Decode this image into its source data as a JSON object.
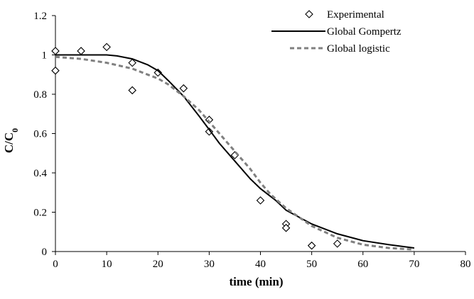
{
  "chart_data": {
    "type": "line",
    "xlabel": "time (min)",
    "ylabel_main": "C/C",
    "ylabel_sub": "0",
    "xlim": [
      0,
      80
    ],
    "ylim": [
      0,
      1.2
    ],
    "x_ticks": [
      0,
      10,
      20,
      30,
      40,
      50,
      60,
      70,
      80
    ],
    "y_ticks": [
      0,
      0.2,
      0.4,
      0.6,
      0.8,
      1,
      1.2
    ],
    "y_tick_labels": [
      "0",
      "0.2",
      "0.4",
      "0.6",
      "0.8",
      "1",
      "1.2"
    ],
    "grid": false,
    "legend_position": "top-right",
    "series": [
      {
        "name": "Experimental",
        "style": "markers",
        "marker": "diamond-open",
        "color": "#000000",
        "points": [
          [
            0,
            1.02
          ],
          [
            0,
            0.92
          ],
          [
            5,
            1.02
          ],
          [
            10,
            1.04
          ],
          [
            15,
            0.96
          ],
          [
            15,
            0.82
          ],
          [
            20,
            0.91
          ],
          [
            25,
            0.83
          ],
          [
            30,
            0.67
          ],
          [
            30,
            0.61
          ],
          [
            35,
            0.49
          ],
          [
            40,
            0.26
          ],
          [
            45,
            0.14
          ],
          [
            45,
            0.12
          ],
          [
            50,
            0.03
          ],
          [
            55,
            0.04
          ]
        ]
      },
      {
        "name": "Global Gompertz",
        "style": "solid",
        "color": "#000000",
        "points": [
          [
            0,
            1.0
          ],
          [
            5,
            1.0
          ],
          [
            10,
            1.0
          ],
          [
            12,
            0.995
          ],
          [
            15,
            0.98
          ],
          [
            18,
            0.95
          ],
          [
            20,
            0.92
          ],
          [
            22,
            0.87
          ],
          [
            25,
            0.79
          ],
          [
            28,
            0.69
          ],
          [
            30,
            0.62
          ],
          [
            32,
            0.55
          ],
          [
            35,
            0.46
          ],
          [
            38,
            0.37
          ],
          [
            40,
            0.32
          ],
          [
            43,
            0.26
          ],
          [
            45,
            0.21
          ],
          [
            50,
            0.14
          ],
          [
            55,
            0.09
          ],
          [
            60,
            0.055
          ],
          [
            65,
            0.035
          ],
          [
            70,
            0.018
          ]
        ]
      },
      {
        "name": "Global logistic",
        "style": "dashed",
        "color": "#808080",
        "points": [
          [
            0,
            0.99
          ],
          [
            5,
            0.98
          ],
          [
            10,
            0.96
          ],
          [
            15,
            0.93
          ],
          [
            18,
            0.9
          ],
          [
            20,
            0.88
          ],
          [
            22,
            0.85
          ],
          [
            25,
            0.79
          ],
          [
            28,
            0.72
          ],
          [
            30,
            0.66
          ],
          [
            32,
            0.6
          ],
          [
            35,
            0.51
          ],
          [
            38,
            0.42
          ],
          [
            40,
            0.35
          ],
          [
            42,
            0.29
          ],
          [
            45,
            0.22
          ],
          [
            50,
            0.13
          ],
          [
            55,
            0.07
          ],
          [
            60,
            0.035
          ],
          [
            65,
            0.018
          ],
          [
            70,
            0.01
          ]
        ]
      }
    ]
  }
}
